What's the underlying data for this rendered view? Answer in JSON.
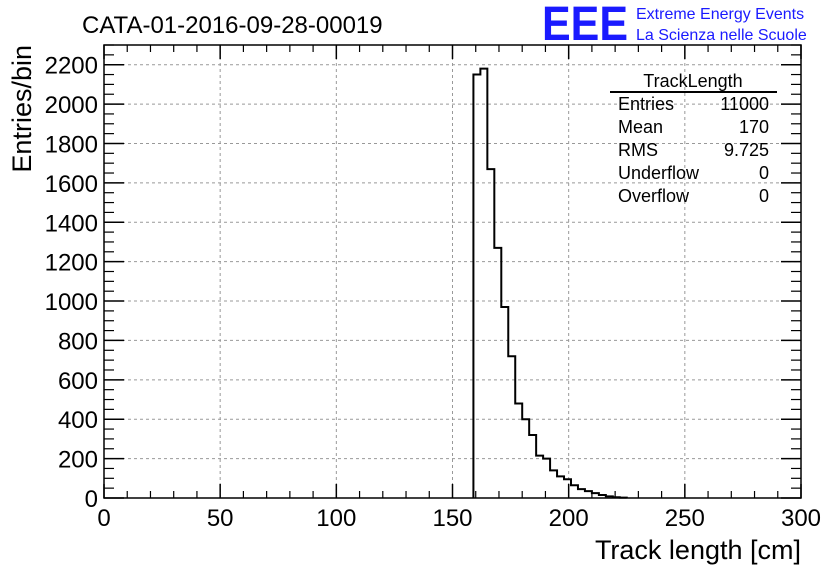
{
  "chart_data": {
    "type": "histogram",
    "title": "CATA-01-2016-09-28-00019",
    "xlabel": "Track length [cm]",
    "ylabel": "Entries/bin",
    "xlim": [
      0,
      300
    ],
    "ylim": [
      0,
      2300
    ],
    "x_ticks": [
      "0",
      "50",
      "100",
      "150",
      "200",
      "250",
      "300"
    ],
    "y_ticks": [
      "0",
      "200",
      "400",
      "600",
      "800",
      "1000",
      "1200",
      "1400",
      "1600",
      "1800",
      "2000",
      "2200"
    ],
    "grid": true,
    "bin_width": 3,
    "bins": [
      {
        "x": 159,
        "y": 2150
      },
      {
        "x": 162,
        "y": 2180
      },
      {
        "x": 165,
        "y": 1670
      },
      {
        "x": 168,
        "y": 1270
      },
      {
        "x": 171,
        "y": 970
      },
      {
        "x": 174,
        "y": 720
      },
      {
        "x": 177,
        "y": 480
      },
      {
        "x": 180,
        "y": 400
      },
      {
        "x": 183,
        "y": 320
      },
      {
        "x": 186,
        "y": 215
      },
      {
        "x": 189,
        "y": 200
      },
      {
        "x": 192,
        "y": 140
      },
      {
        "x": 195,
        "y": 110
      },
      {
        "x": 198,
        "y": 95
      },
      {
        "x": 201,
        "y": 65
      },
      {
        "x": 204,
        "y": 45
      },
      {
        "x": 207,
        "y": 35
      },
      {
        "x": 210,
        "y": 25
      },
      {
        "x": 213,
        "y": 15
      },
      {
        "x": 216,
        "y": 8
      },
      {
        "x": 219,
        "y": 4
      },
      {
        "x": 222,
        "y": 2
      }
    ],
    "stats_box": {
      "name": "TrackLength",
      "rows": [
        {
          "label": "Entries",
          "value": "11000"
        },
        {
          "label": "Mean",
          "value": "170"
        },
        {
          "label": "RMS",
          "value": "9.725"
        },
        {
          "label": "Underflow",
          "value": "0"
        },
        {
          "label": "Overflow",
          "value": "0"
        }
      ]
    }
  },
  "logo": {
    "mark": "EEE",
    "line1": "Extreme Energy Events",
    "line2": "La Scienza nelle Scuole",
    "color": "#1a1aff"
  }
}
